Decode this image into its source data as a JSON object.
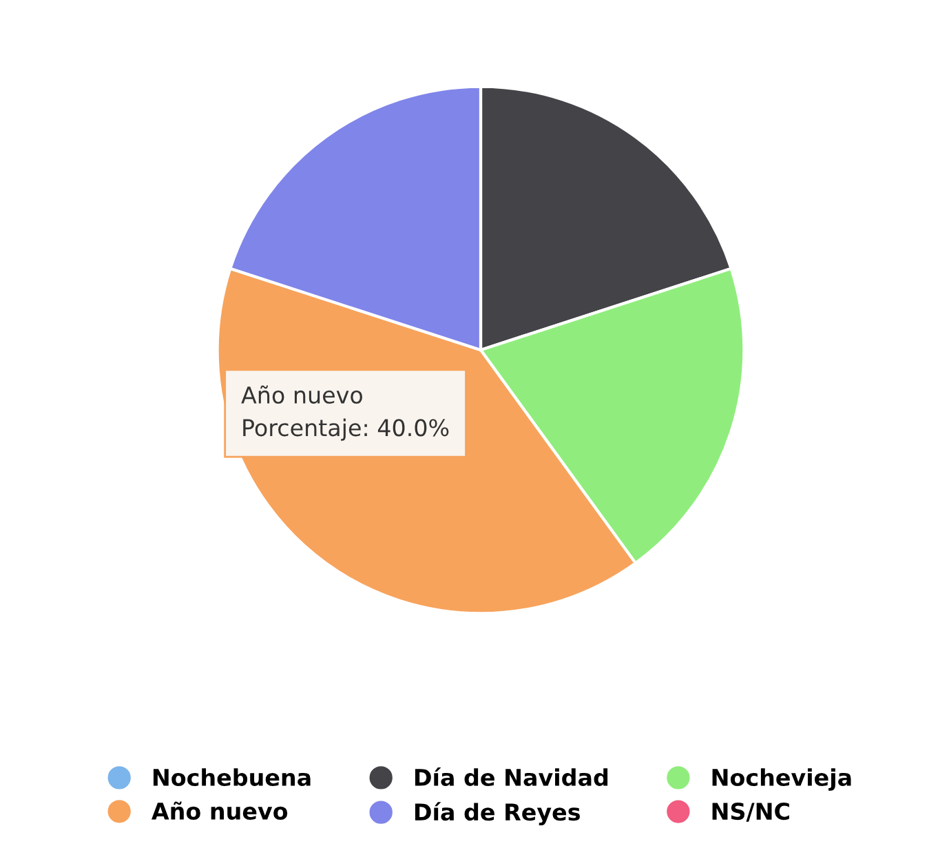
{
  "chart_data": {
    "type": "pie",
    "categories": [
      "Nochebuena",
      "Día de Navidad",
      "Nochevieja",
      "Año nuevo",
      "Día de Reyes",
      "NS/NC"
    ],
    "values": [
      0,
      20,
      20,
      40,
      20,
      0
    ],
    "colors": [
      "#7cb5ec",
      "#434348",
      "#90ed7d",
      "#f7a35c",
      "#8085e9",
      "#f15c80"
    ],
    "annotations": [
      "Año nuevo",
      "Porcentaje: 40.0%"
    ],
    "legend": "bottom"
  }
}
